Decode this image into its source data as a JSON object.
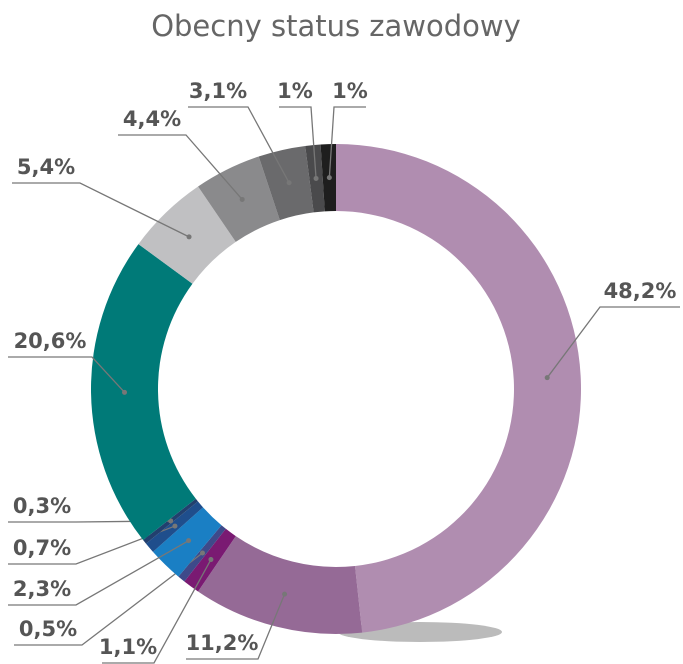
{
  "chart_data": {
    "type": "donut",
    "title": "Obecny status zawodowy",
    "values": [
      48.2,
      11.2,
      1.1,
      0.5,
      2.3,
      0.7,
      0.3,
      20.6,
      5.4,
      4.4,
      3.1,
      1,
      1
    ],
    "value_labels": [
      "48,2%",
      "11,2%",
      "1,1%",
      "0,5%",
      "2,3%",
      "0,7%",
      "0,3%",
      "20,6%",
      "5,4%",
      "4,4%",
      "3,1%",
      "1%",
      "1%"
    ],
    "colors": [
      "#b08db0",
      "#956a96",
      "#7a1a72",
      "#3e4a8a",
      "#1a7fc4",
      "#1f4e8c",
      "#22406e",
      "#007a78",
      "#c0c0c2",
      "#8a8a8c",
      "#6a6a6c",
      "#4a4a4c",
      "#1e1e1e"
    ]
  }
}
